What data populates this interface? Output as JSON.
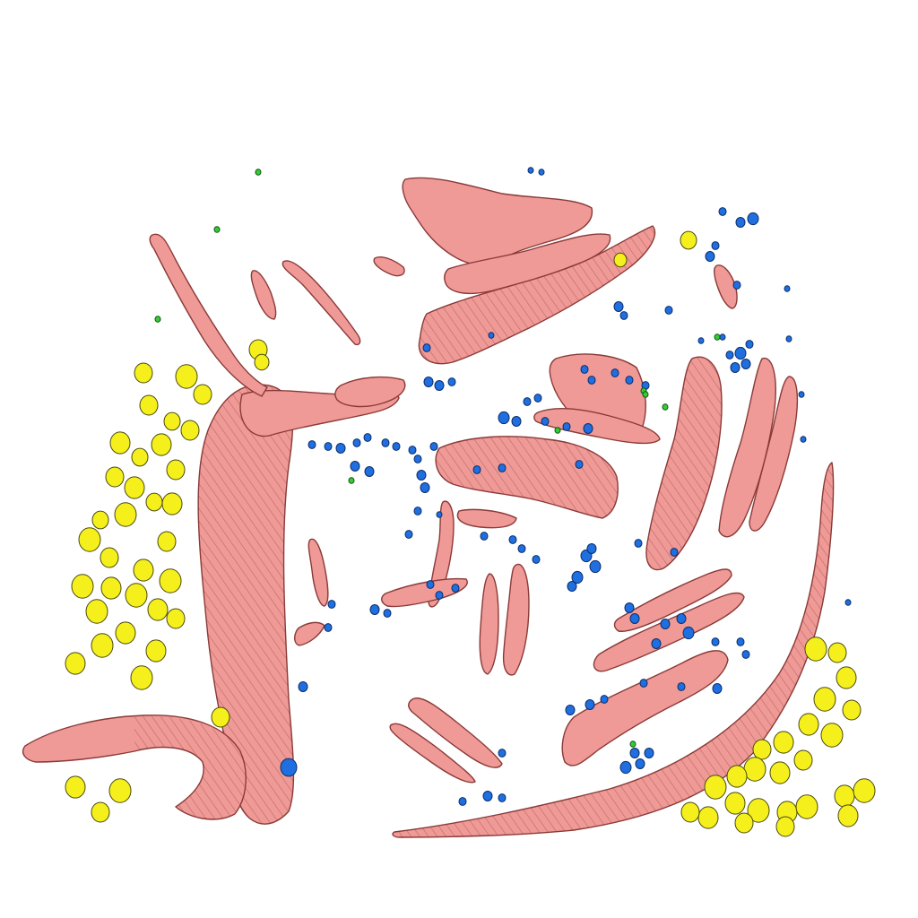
{
  "colors": {
    "background": "#ffffff",
    "fiber_fill": "#ef9a96",
    "fiber_light": "#f6b3ae",
    "fiber_edge": "#8a3a38",
    "fiber_shadow": "#4a1616",
    "yellow_fill": "#f5f01c",
    "yellow_edge": "#4a4a10",
    "blue_fill": "#1f6fe0",
    "blue_edge": "#0b2d6b",
    "green_fill": "#33cc33",
    "green_edge": "#145214"
  },
  "legend": [],
  "labels": []
}
